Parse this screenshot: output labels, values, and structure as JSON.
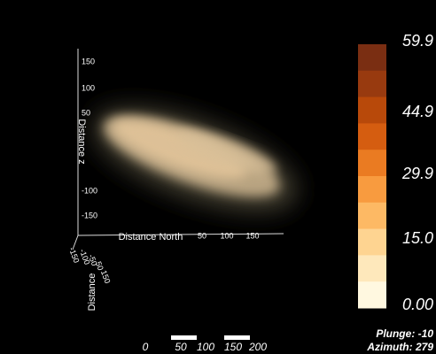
{
  "axes": {
    "vertical": {
      "title": "Distance z",
      "ticks": [
        "150",
        "100",
        "50",
        "-100",
        "-150"
      ]
    },
    "horizontal": {
      "title": "Distance North",
      "ticks": [
        "50",
        "100",
        "150"
      ]
    },
    "depth": {
      "title": "Distance",
      "ticks": [
        "-150",
        "-100",
        "-50",
        "50",
        "150"
      ]
    }
  },
  "colorbar": {
    "labels": [
      "59.9",
      "44.9",
      "29.9",
      "15.0",
      "0.00"
    ],
    "colors": [
      "#7a2e12",
      "#983a0f",
      "#b8490a",
      "#d55d10",
      "#ea7b22",
      "#f89b3f",
      "#fdb964",
      "#fed491",
      "#fee8bb",
      "#fff8e0"
    ]
  },
  "scale_bar": {
    "labels": [
      "0",
      "50",
      "100",
      "150",
      "200"
    ]
  },
  "view": {
    "plunge": "Plunge: -10",
    "azimuth": "Azimuth: 279"
  }
}
